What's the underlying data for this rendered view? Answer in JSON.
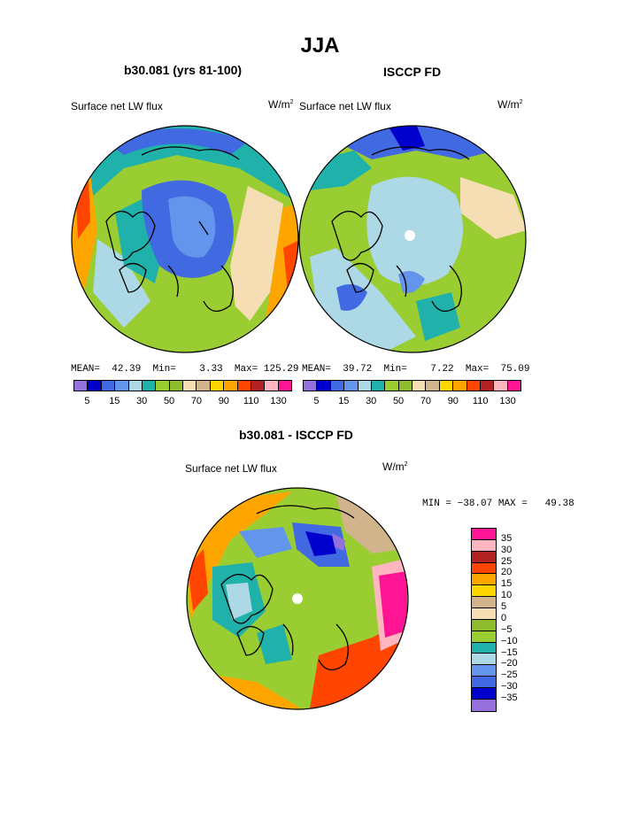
{
  "title": "JJA",
  "panels": [
    {
      "name": "model",
      "title": "b30.081 (yrs 81-100)",
      "label": "Surface net LW flux",
      "units": "W/m",
      "units_sup": "2",
      "stats": {
        "mean_label": "MEAN=",
        "mean": "42.39",
        "min_label": "Min=",
        "min": "3.33",
        "max_label": "Max=",
        "max": "125.29"
      }
    },
    {
      "name": "obs",
      "title": "ISCCP FD",
      "label": "Surface net LW flux",
      "units": "W/m",
      "units_sup": "2",
      "stats": {
        "mean_label": "MEAN=",
        "mean": "39.72",
        "min_label": "Min=",
        "min": "7.22",
        "max_label": "Max=",
        "max": "75.09"
      }
    }
  ],
  "abs_colorbar": {
    "colors": [
      "#9370db",
      "#0000cd",
      "#4169e1",
      "#6495ed",
      "#add8e6",
      "#20b2aa",
      "#9acd32",
      "#8fbc2f",
      "#f5deb3",
      "#d2b48c",
      "#ffd700",
      "#ffa500",
      "#ff4500",
      "#b22222",
      "#ffb6c1",
      "#ff1493"
    ],
    "tick_labels": [
      "5",
      "15",
      "30",
      "50",
      "70",
      "90",
      "110",
      "130"
    ]
  },
  "diff_panel": {
    "title": "b30.081 - ISCCP FD",
    "label": "Surface net LW flux",
    "units": "W/m",
    "units_sup": "2",
    "min_label": "MIN =",
    "min": "−38.07",
    "max_label": "MAX =",
    "max": "49.38"
  },
  "diff_colorbar": {
    "colors_top_to_bottom": [
      "#ff1493",
      "#ffb6c1",
      "#b22222",
      "#ff4500",
      "#ffa500",
      "#ffd700",
      "#d2b48c",
      "#f5deb3",
      "#8fbc2f",
      "#9acd32",
      "#20b2aa",
      "#add8e6",
      "#6495ed",
      "#4169e1",
      "#0000cd",
      "#9370db"
    ],
    "tick_labels": [
      "35",
      "30",
      "25",
      "20",
      "15",
      "10",
      "5",
      "0",
      "−5",
      "−10",
      "−15",
      "−20",
      "−25",
      "−30",
      "−35"
    ]
  }
}
